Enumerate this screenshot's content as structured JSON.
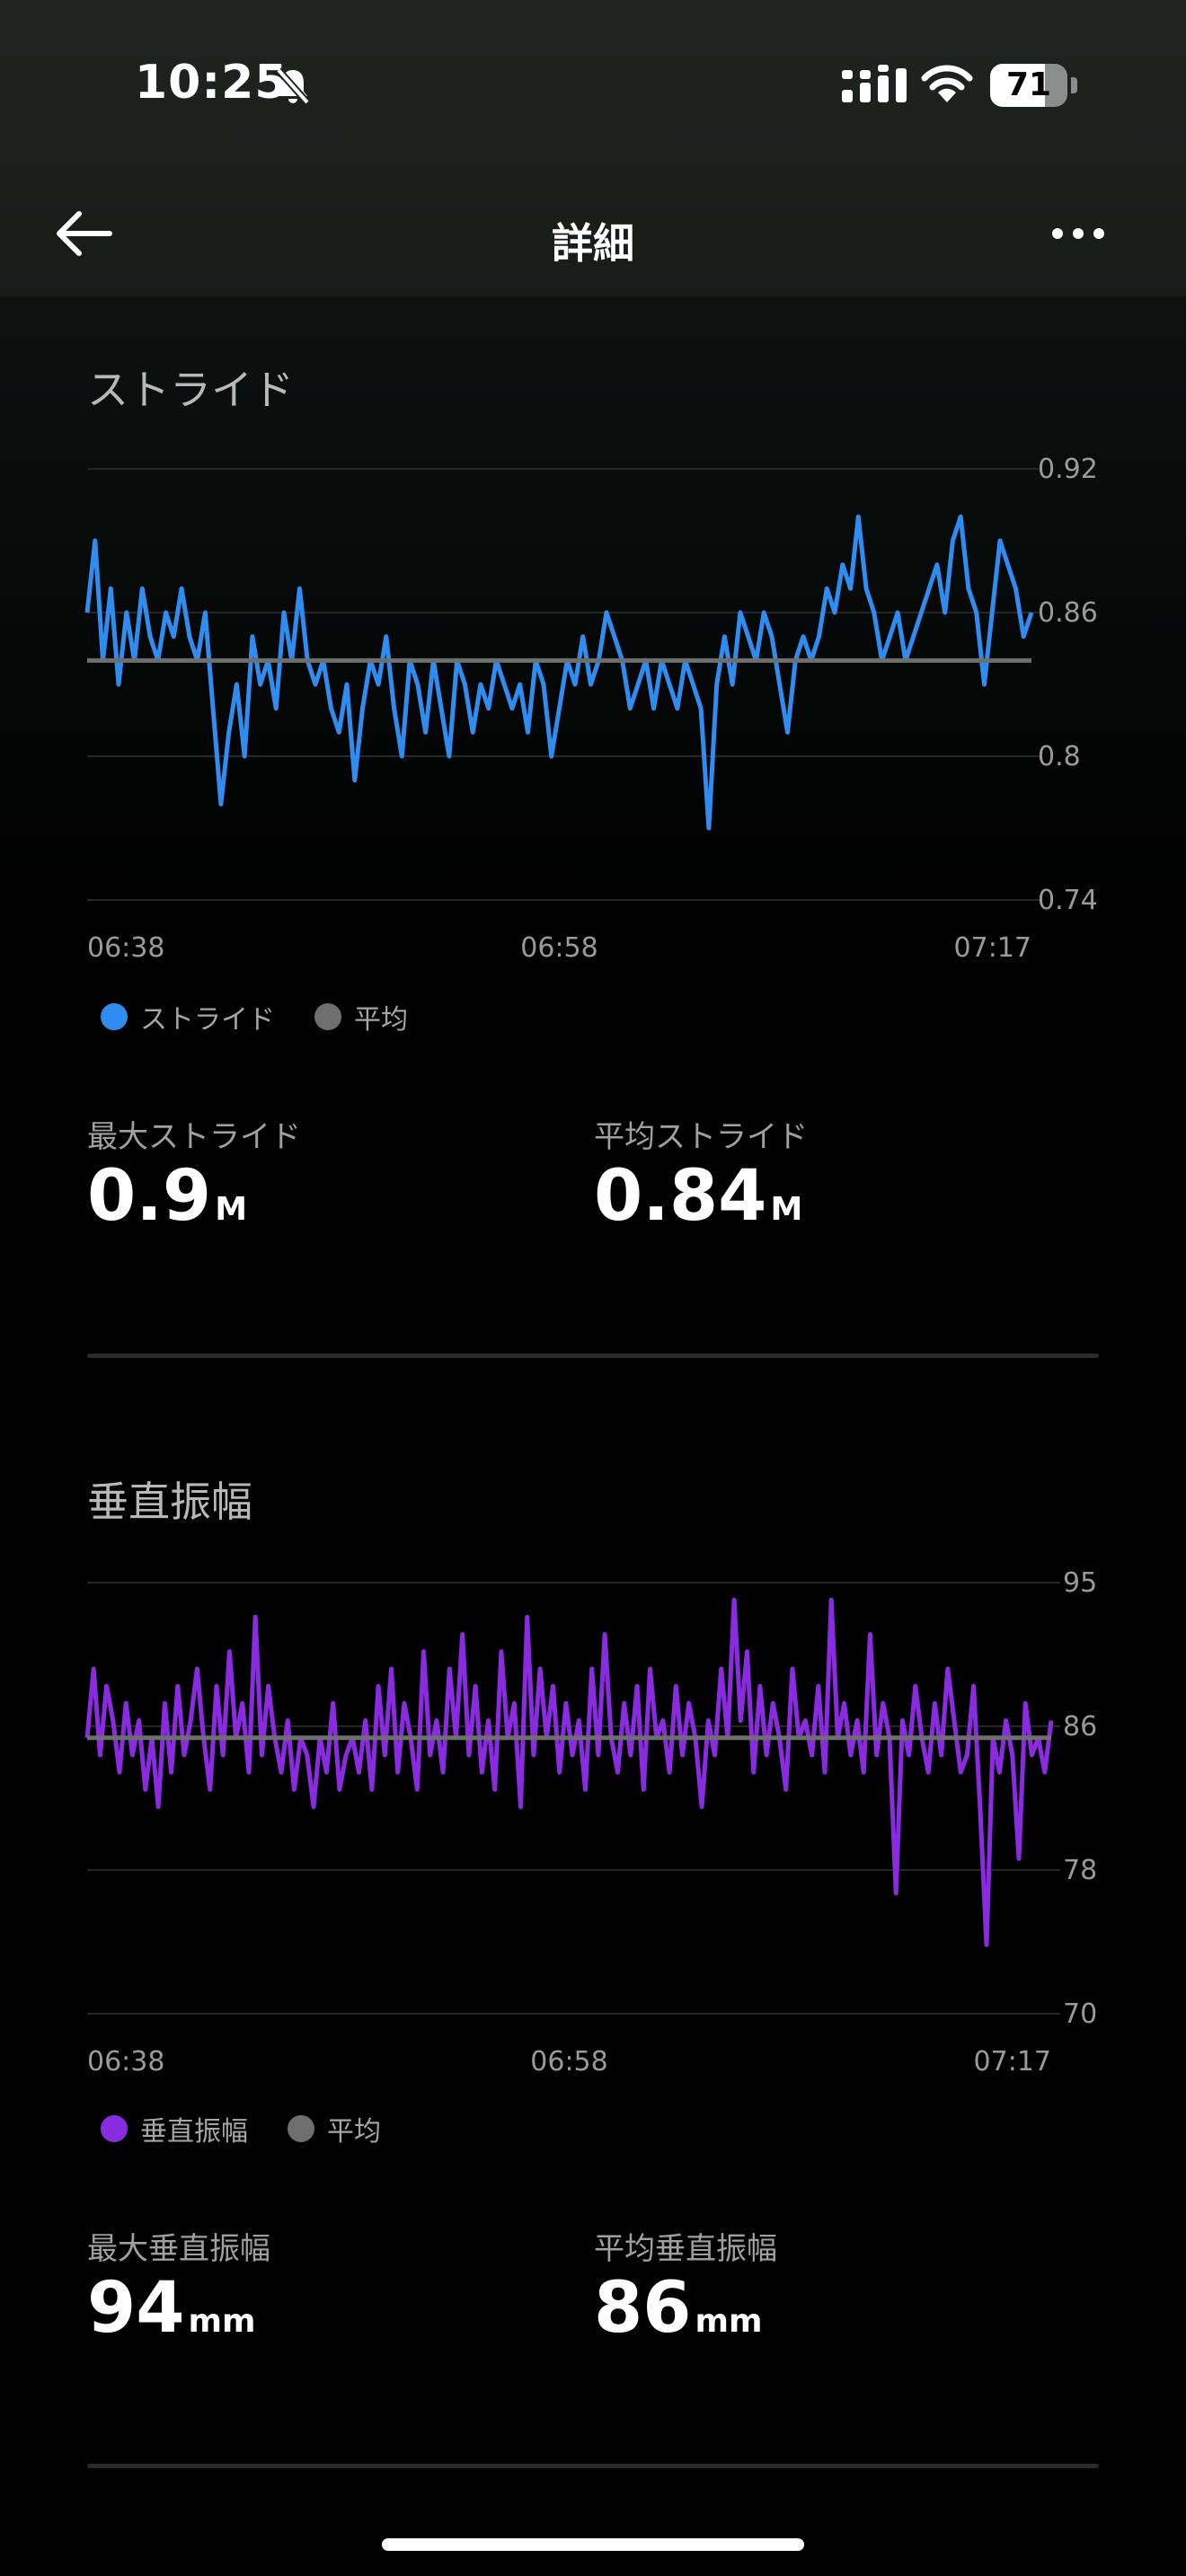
{
  "status_bar": {
    "time": "10:25",
    "battery": "71",
    "battery_level": 0.71
  },
  "nav": {
    "title": "詳細"
  },
  "stride": {
    "title": "ストライド",
    "legend_series": "ストライド",
    "legend_avg": "平均",
    "max_label": "最大ストライド",
    "max_value": "0.9",
    "max_unit": "M",
    "avg_label": "平均ストライド",
    "avg_value": "0.84",
    "avg_unit": "M"
  },
  "vertical": {
    "title": "垂直振幅",
    "legend_series": "垂直振幅",
    "legend_avg": "平均",
    "max_label": "最大垂直振幅",
    "max_value": "94",
    "max_unit": "mm",
    "avg_label": "平均垂直振幅",
    "avg_value": "86",
    "avg_unit": "mm"
  },
  "chart_data": [
    {
      "type": "line",
      "series_name": "ストライド",
      "color": "#2f8cf0",
      "avg_color": "#6e6e6e",
      "y_ticks": [
        "0.92",
        "0.86",
        "0.8",
        "0.74"
      ],
      "ylim": [
        0.74,
        0.92
      ],
      "x_ticks": [
        "06:38",
        "06:58",
        "07:17"
      ],
      "average": 0.84,
      "values": [
        0.86,
        0.89,
        0.84,
        0.87,
        0.83,
        0.86,
        0.84,
        0.87,
        0.85,
        0.84,
        0.86,
        0.85,
        0.87,
        0.85,
        0.84,
        0.86,
        0.82,
        0.78,
        0.81,
        0.83,
        0.8,
        0.85,
        0.83,
        0.84,
        0.82,
        0.86,
        0.84,
        0.87,
        0.84,
        0.83,
        0.84,
        0.82,
        0.81,
        0.83,
        0.79,
        0.82,
        0.84,
        0.83,
        0.85,
        0.82,
        0.8,
        0.84,
        0.83,
        0.81,
        0.84,
        0.82,
        0.8,
        0.84,
        0.83,
        0.81,
        0.83,
        0.82,
        0.84,
        0.83,
        0.82,
        0.83,
        0.81,
        0.84,
        0.83,
        0.8,
        0.82,
        0.84,
        0.83,
        0.85,
        0.83,
        0.84,
        0.86,
        0.85,
        0.84,
        0.82,
        0.83,
        0.84,
        0.82,
        0.84,
        0.83,
        0.82,
        0.84,
        0.83,
        0.82,
        0.77,
        0.83,
        0.85,
        0.83,
        0.86,
        0.85,
        0.84,
        0.86,
        0.85,
        0.83,
        0.81,
        0.84,
        0.85,
        0.84,
        0.85,
        0.87,
        0.86,
        0.88,
        0.87,
        0.9,
        0.87,
        0.86,
        0.84,
        0.85,
        0.86,
        0.84,
        0.85,
        0.86,
        0.87,
        0.88,
        0.86,
        0.89,
        0.9,
        0.87,
        0.86,
        0.83,
        0.86,
        0.89,
        0.88,
        0.87,
        0.85,
        0.86
      ]
    },
    {
      "type": "line",
      "series_name": "垂直振幅",
      "color": "#8a2be2",
      "avg_color": "#6e6e6e",
      "y_ticks": [
        "95",
        "86",
        "78",
        "70"
      ],
      "ylim": [
        70,
        95
      ],
      "x_ticks": [
        "06:38",
        "06:58",
        "07:17"
      ],
      "average": 86,
      "values": [
        86,
        90,
        85,
        89,
        87,
        84,
        88,
        85,
        87,
        83,
        86,
        82,
        88,
        84,
        89,
        85,
        87,
        90,
        86,
        83,
        89,
        85,
        91,
        86,
        88,
        84,
        93,
        85,
        89,
        86,
        84,
        87,
        83,
        86,
        85,
        82,
        86,
        84,
        88,
        83,
        85,
        86,
        84,
        87,
        83,
        89,
        85,
        90,
        84,
        88,
        86,
        83,
        91,
        85,
        87,
        84,
        90,
        86,
        92,
        85,
        89,
        84,
        87,
        83,
        91,
        86,
        88,
        82,
        93,
        85,
        90,
        86,
        89,
        84,
        88,
        85,
        87,
        83,
        90,
        85,
        92,
        86,
        84,
        88,
        85,
        89,
        83,
        90,
        86,
        87,
        84,
        89,
        85,
        88,
        86,
        82,
        87,
        85,
        90,
        86,
        94,
        87,
        91,
        84,
        89,
        85,
        88,
        86,
        83,
        90,
        86,
        87,
        85,
        89,
        84,
        94,
        86,
        88,
        85,
        87,
        84,
        92,
        85,
        88,
        86,
        77,
        87,
        85,
        89,
        86,
        84,
        88,
        85,
        90,
        87,
        84,
        85,
        89,
        82,
        74,
        86,
        84,
        87,
        85,
        79,
        88,
        85,
        86,
        84,
        87
      ]
    }
  ]
}
